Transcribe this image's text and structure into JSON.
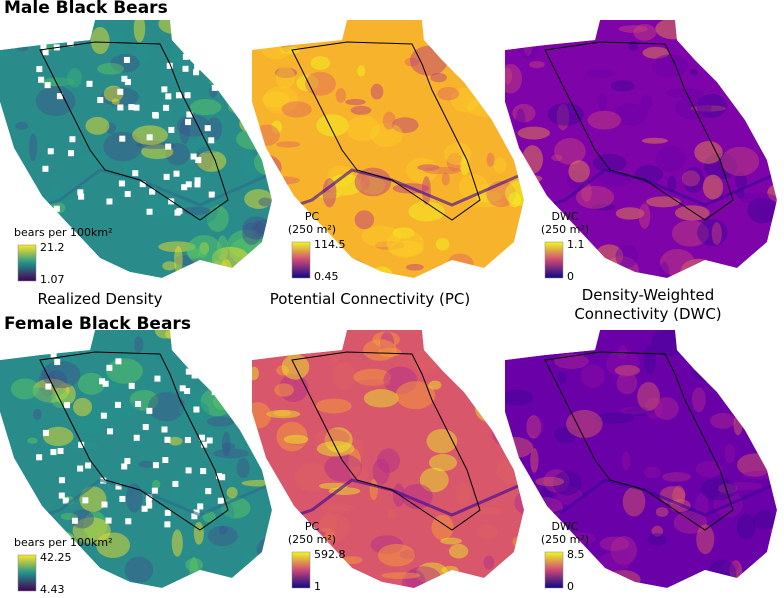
{
  "rows": [
    {
      "title": "Male Black Bears",
      "panels": [
        {
          "legend_title": [
            "bears per 100km²"
          ],
          "legend_max": "21.2",
          "legend_min": "1.07"
        },
        {
          "legend_title": [
            "PC",
            "(250 m²)"
          ],
          "legend_max": "114.5",
          "legend_min": "0.45"
        },
        {
          "legend_title": [
            "DWC",
            "(250 m²)"
          ],
          "legend_max": "1.1",
          "legend_min": "0"
        }
      ]
    },
    {
      "title": "Female Black Bears",
      "panels": [
        {
          "legend_title": [
            "bears per 100km²"
          ],
          "legend_max": "42.25",
          "legend_min": "4.43"
        },
        {
          "legend_title": [
            "PC",
            "(250 m²)"
          ],
          "legend_max": "592.8",
          "legend_min": "1"
        },
        {
          "legend_title": [
            "DWC",
            "(250 m²)"
          ],
          "legend_max": "8.5",
          "legend_min": "0"
        }
      ]
    }
  ],
  "column_labels": [
    "Realized Density",
    "Potential Connectivity (PC)",
    "Density-Weighted Connectivity (DWC)"
  ]
}
